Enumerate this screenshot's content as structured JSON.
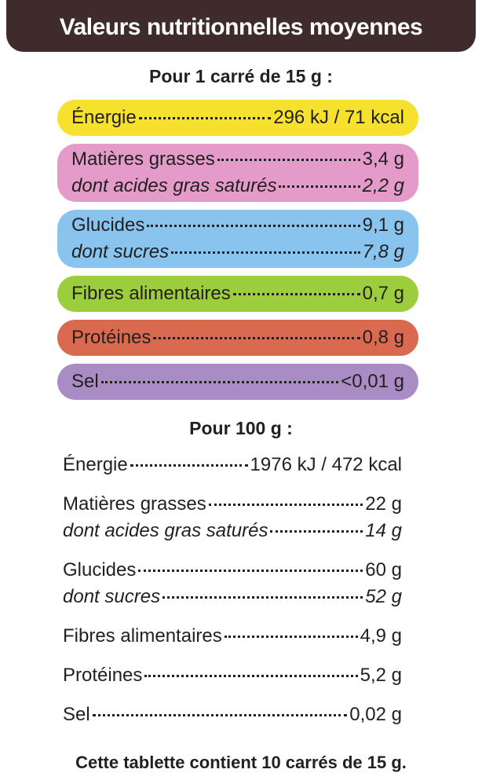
{
  "header": {
    "title": "Valeurs nutritionnelles moyennes"
  },
  "per_portion": {
    "heading": "Pour 1 carré de 15 g :",
    "groups": [
      {
        "rows": [
          {
            "label": "Énergie",
            "value": "296 kJ / 71 kcal"
          }
        ]
      },
      {
        "rows": [
          {
            "label": "Matières grasses",
            "value": "3,4 g"
          }
        ],
        "sub": {
          "label": "dont acides gras saturés",
          "value": "2,2 g"
        }
      },
      {
        "rows": [
          {
            "label": "Glucides",
            "value": "9,1 g"
          }
        ],
        "sub": {
          "label": "dont sucres",
          "value": "7,8 g"
        }
      },
      {
        "rows": [
          {
            "label": "Fibres alimentaires",
            "value": "0,7 g"
          }
        ]
      },
      {
        "rows": [
          {
            "label": "Protéines",
            "value": "0,8 g"
          }
        ]
      },
      {
        "rows": [
          {
            "label": "Sel",
            "value": "<0,01 g"
          }
        ]
      }
    ]
  },
  "per_100g": {
    "heading": "Pour 100 g :",
    "groups": [
      {
        "rows": [
          {
            "label": "Énergie",
            "value": "1976 kJ / 472 kcal"
          }
        ]
      },
      {
        "rows": [
          {
            "label": "Matières grasses",
            "value": "22 g"
          }
        ],
        "sub": {
          "label": "dont acides gras saturés",
          "value": "14 g"
        }
      },
      {
        "rows": [
          {
            "label": "Glucides",
            "value": "60 g"
          }
        ],
        "sub": {
          "label": "dont sucres",
          "value": "52 g"
        }
      },
      {
        "rows": [
          {
            "label": "Fibres alimentaires",
            "value": "4,9 g"
          }
        ]
      },
      {
        "rows": [
          {
            "label": "Protéines",
            "value": "5,2 g"
          }
        ]
      },
      {
        "rows": [
          {
            "label": "Sel",
            "value": "0,02 g"
          }
        ]
      }
    ]
  },
  "footer": "Cette tablette contient 10 carrés de 15 g."
}
